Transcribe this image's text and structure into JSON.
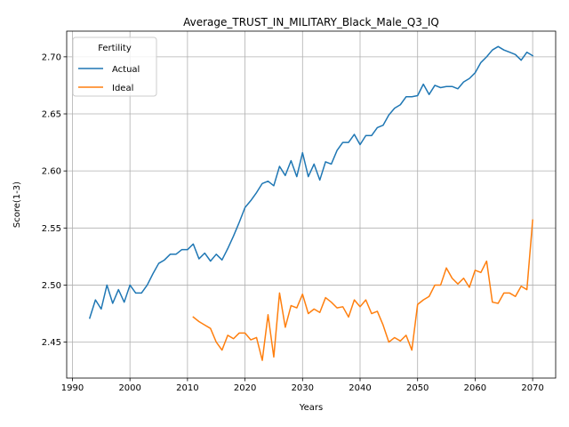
{
  "chart_data": {
    "type": "line",
    "title": "Average_TRUST_IN_MILITARY_Black_Male_Q3_IQ",
    "xlabel": "Years",
    "ylabel": "Score(1-3)",
    "xlim": [
      1989,
      2074
    ],
    "ylim": [
      2.4185,
      2.7225
    ],
    "xticks": [
      1990,
      2000,
      2010,
      2020,
      2030,
      2040,
      2050,
      2060,
      2070
    ],
    "yticks": [
      2.45,
      2.5,
      2.55,
      2.6,
      2.65,
      2.7
    ],
    "ytick_labels": [
      "2.45",
      "2.50",
      "2.55",
      "2.60",
      "2.65",
      "2.70"
    ],
    "grid": true,
    "legend": {
      "title": "Fertility",
      "position": "upper-left"
    },
    "series": [
      {
        "name": "Actual",
        "color": "#1f77b4",
        "x": [
          1993,
          1994,
          1995,
          1996,
          1997,
          1998,
          1999,
          2000,
          2001,
          2002,
          2003,
          2004,
          2005,
          2006,
          2007,
          2008,
          2009,
          2010,
          2011,
          2012,
          2013,
          2014,
          2015,
          2016,
          2017,
          2018,
          2019,
          2020,
          2021,
          2022,
          2023,
          2024,
          2025,
          2026,
          2027,
          2028,
          2029,
          2030,
          2031,
          2032,
          2033,
          2034,
          2035,
          2036,
          2037,
          2038,
          2039,
          2040,
          2041,
          2042,
          2043,
          2044,
          2045,
          2046,
          2047,
          2048,
          2049,
          2050,
          2051,
          2052,
          2053,
          2054,
          2055,
          2056,
          2057,
          2058,
          2059,
          2060,
          2061,
          2062,
          2063,
          2064,
          2065,
          2066,
          2067,
          2068,
          2069,
          2070
        ],
        "values": [
          2.471,
          2.487,
          2.479,
          2.5,
          2.484,
          2.496,
          2.485,
          2.5,
          2.493,
          2.493,
          2.5,
          2.51,
          2.519,
          2.522,
          2.527,
          2.527,
          2.531,
          2.531,
          2.536,
          2.523,
          2.528,
          2.521,
          2.527,
          2.522,
          2.532,
          2.543,
          2.555,
          2.568,
          2.574,
          2.581,
          2.589,
          2.591,
          2.587,
          2.604,
          2.596,
          2.609,
          2.595,
          2.616,
          2.595,
          2.606,
          2.592,
          2.608,
          2.606,
          2.618,
          2.625,
          2.625,
          2.632,
          2.623,
          2.631,
          2.631,
          2.638,
          2.64,
          2.649,
          2.655,
          2.658,
          2.665,
          2.665,
          2.666,
          2.676,
          2.667,
          2.675,
          2.673,
          2.674,
          2.674,
          2.672,
          2.678,
          2.681,
          2.686,
          2.695,
          2.7,
          2.706,
          2.709,
          2.706,
          2.704,
          2.702,
          2.697,
          2.704,
          2.701
        ]
      },
      {
        "name": "Ideal",
        "color": "#ff7f0e",
        "x": [
          2011,
          2012,
          2013,
          2014,
          2015,
          2016,
          2017,
          2018,
          2019,
          2020,
          2021,
          2022,
          2023,
          2024,
          2025,
          2026,
          2027,
          2028,
          2029,
          2030,
          2031,
          2032,
          2033,
          2034,
          2035,
          2036,
          2037,
          2038,
          2039,
          2040,
          2041,
          2042,
          2043,
          2044,
          2045,
          2046,
          2047,
          2048,
          2049,
          2050,
          2051,
          2052,
          2053,
          2054,
          2055,
          2056,
          2057,
          2058,
          2059,
          2060,
          2061,
          2062,
          2063,
          2064,
          2065,
          2066,
          2067,
          2068,
          2069,
          2070
        ],
        "values": [
          2.472,
          2.468,
          2.465,
          2.462,
          2.45,
          2.443,
          2.456,
          2.453,
          2.458,
          2.458,
          2.452,
          2.454,
          2.434,
          2.474,
          2.437,
          2.493,
          2.463,
          2.482,
          2.48,
          2.492,
          2.475,
          2.479,
          2.476,
          2.489,
          2.485,
          2.48,
          2.481,
          2.472,
          2.487,
          2.481,
          2.487,
          2.475,
          2.477,
          2.465,
          2.45,
          2.454,
          2.451,
          2.456,
          2.443,
          2.483,
          2.487,
          2.49,
          2.5,
          2.5,
          2.515,
          2.506,
          2.501,
          2.506,
          2.498,
          2.513,
          2.511,
          2.521,
          2.485,
          2.484,
          2.493,
          2.493,
          2.49,
          2.499,
          2.496,
          2.557
        ]
      }
    ]
  }
}
